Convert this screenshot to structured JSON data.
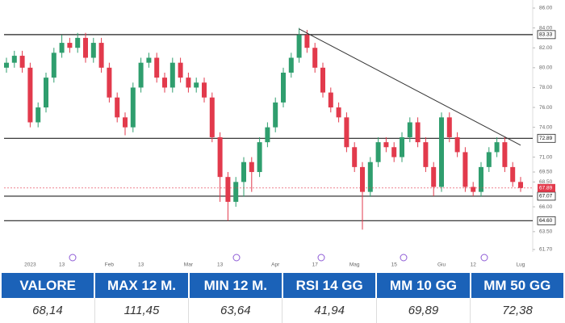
{
  "chart_data": {
    "type": "candlestick",
    "categories": [
      null,
      null,
      null,
      "2023",
      null,
      null,
      null,
      "13",
      null,
      null,
      null,
      null,
      null,
      "Feb",
      null,
      null,
      null,
      "13",
      null,
      null,
      null,
      null,
      null,
      "Mar",
      null,
      null,
      null,
      "13",
      null,
      null,
      null,
      null,
      null,
      null,
      "Apr",
      null,
      null,
      null,
      null,
      "17",
      null,
      null,
      null,
      null,
      "Mag",
      null,
      null,
      null,
      null,
      "15",
      null,
      null,
      null,
      null,
      null,
      "Giu",
      null,
      null,
      null,
      "12",
      null,
      null,
      null,
      null,
      null,
      "Lug"
    ],
    "open": [
      80,
      80.5,
      81.2,
      80,
      74.5,
      76,
      79,
      81.5,
      82.5,
      82,
      83,
      81,
      82.5,
      80,
      77,
      75,
      74,
      78,
      80.5,
      81,
      79,
      78,
      80.5,
      79,
      78,
      78.5,
      77,
      73,
      69,
      66.5,
      68.5,
      70.5,
      69.5,
      72.5,
      74,
      76.5,
      79.5,
      81,
      83.3,
      82,
      80,
      77.5,
      76,
      75,
      72,
      70,
      67.5,
      70.5,
      72.5,
      72,
      71,
      73,
      74.5,
      72.5,
      70,
      68,
      75,
      73,
      71.5,
      68,
      67.5,
      70,
      71.5,
      72.5,
      70,
      68.5
    ],
    "high": [
      81,
      81.7,
      81.7,
      80.5,
      76.5,
      79.5,
      82,
      83.3,
      83,
      83.5,
      83.5,
      83,
      83,
      80.5,
      77.5,
      75.5,
      78.5,
      81,
      81.5,
      81.5,
      79.5,
      81,
      81,
      79.5,
      79,
      79,
      77.5,
      73.5,
      69.5,
      69,
      71,
      71,
      73,
      74.5,
      77,
      80,
      81.5,
      84,
      83.8,
      82.5,
      80.5,
      78,
      76.5,
      75.5,
      72.5,
      70.5,
      71,
      73,
      73,
      72.5,
      73.5,
      75,
      75,
      73,
      70.5,
      75.5,
      75.5,
      73.5,
      72,
      68.5,
      70.5,
      72,
      73,
      73,
      70.5,
      69
    ],
    "low": [
      79.5,
      80,
      79.5,
      74,
      74,
      75.5,
      78.5,
      81,
      81.5,
      81.5,
      80.5,
      80.5,
      79.5,
      76.5,
      74.5,
      73.2,
      73.5,
      77.5,
      80,
      78.5,
      77.5,
      77.5,
      78.5,
      77.5,
      77.5,
      76.5,
      72.5,
      66.5,
      64.6,
      66,
      67,
      67.5,
      69,
      72,
      73.5,
      76,
      79,
      80.5,
      81.5,
      79.5,
      77,
      75.5,
      74.5,
      71.5,
      69.5,
      63.7,
      67,
      70,
      71.5,
      70.5,
      70.5,
      72.5,
      72,
      69.5,
      67.07,
      67.5,
      72.5,
      71,
      67.5,
      67.07,
      67,
      69.5,
      71,
      69.5,
      68,
      67.5
    ],
    "close": [
      80.5,
      81.2,
      80,
      74.5,
      76,
      79,
      81.5,
      82.5,
      82,
      83,
      81,
      82.5,
      80,
      77,
      75,
      74,
      78,
      80.5,
      81,
      79,
      78,
      80.5,
      79,
      78,
      78.5,
      77,
      73,
      69,
      66.5,
      68.5,
      70.5,
      69.5,
      72.5,
      74,
      76.5,
      79.5,
      81,
      83.3,
      82,
      80,
      77.5,
      76,
      75,
      72,
      70,
      67.5,
      70.5,
      72.5,
      72,
      71,
      73,
      74.5,
      72.5,
      70,
      68,
      75,
      73,
      71.5,
      68,
      67.5,
      70,
      71.5,
      72.5,
      70,
      68.5,
      67.9
    ],
    "up_color": "#2f9e6e",
    "down_color": "#e23a4c",
    "ylim": [
      61.7,
      86
    ],
    "yticks": [
      {
        "value": 86,
        "label": "86.00"
      },
      {
        "value": 84,
        "label": "84.00"
      },
      {
        "value": 82,
        "label": "82.00"
      },
      {
        "value": 80,
        "label": "80.00"
      },
      {
        "value": 78,
        "label": "78.00"
      },
      {
        "value": 76,
        "label": "76.00"
      },
      {
        "value": 74,
        "label": "74.00"
      },
      {
        "value": 71,
        "label": "71.00"
      },
      {
        "value": 69.5,
        "label": "69.50"
      },
      {
        "value": 68.5,
        "label": "68.50"
      },
      {
        "value": 66,
        "label": "66.00"
      },
      {
        "value": 63.5,
        "label": "63.50"
      },
      {
        "value": 61.7,
        "label": "61.70"
      }
    ],
    "levels": [
      {
        "value": 83.33,
        "label": "83.33"
      },
      {
        "value": 72.89,
        "label": "72.89"
      },
      {
        "value": 67.07,
        "label": "67.07"
      },
      {
        "value": 64.6,
        "label": "64.60"
      }
    ],
    "last_price": {
      "value": 67.89,
      "label": "67.89"
    },
    "trendline": {
      "x": [
        37,
        65
      ],
      "y": [
        83.9,
        72.2
      ]
    }
  },
  "table": {
    "headers": [
      "VALORE",
      "MAX 12 M.",
      "MIN 12 M.",
      "RSI 14 GG",
      "MM 10 GG",
      "MM 50 GG"
    ],
    "rows": [
      [
        "68,14",
        "111,45",
        "63,64",
        "41,94",
        "69,89",
        "72,38"
      ]
    ]
  }
}
